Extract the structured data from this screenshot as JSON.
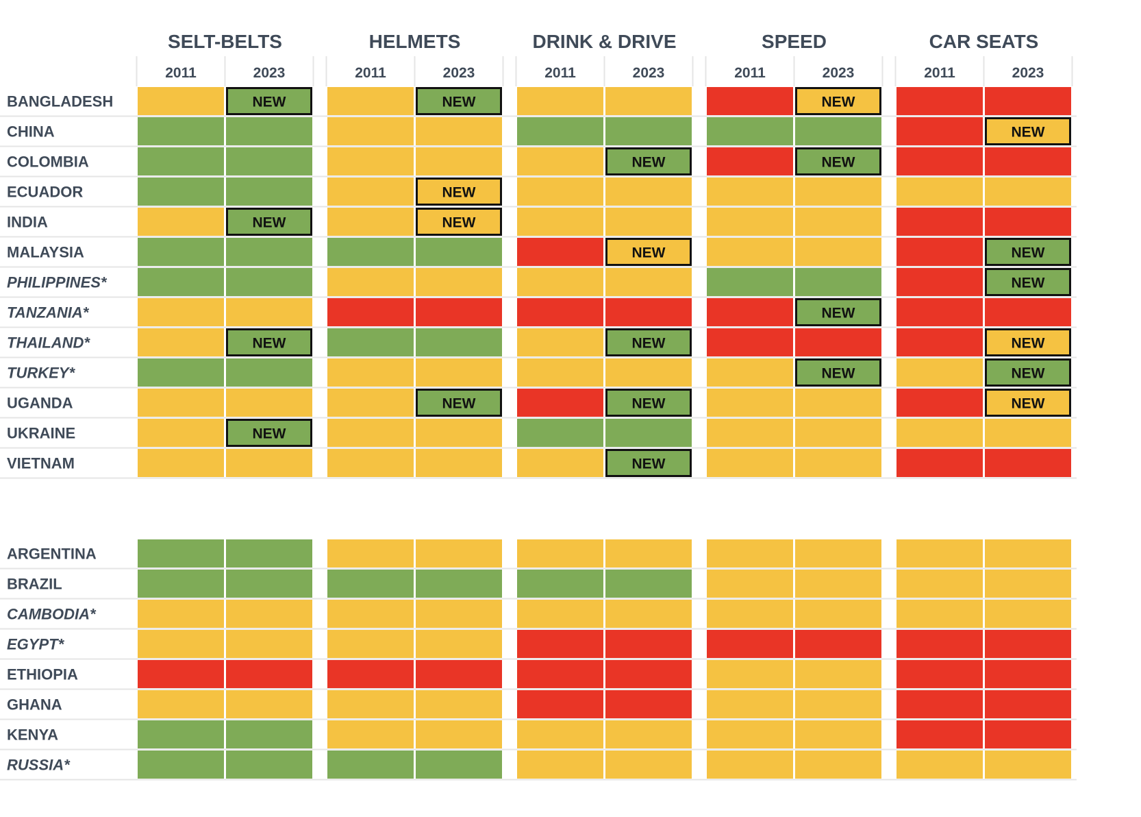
{
  "chart_data": {
    "type": "heatmap",
    "title": "",
    "colors": {
      "green": "#7fab57",
      "yellow": "#f5c242",
      "red": "#e93526",
      "border_new": "#111111",
      "gridline": "#e5e5e5",
      "text": "#3f4a58"
    },
    "categories": [
      "SELT-BELTS",
      "HELMETS",
      "DRINK & DRIVE",
      "SPEED",
      "CAR SEATS"
    ],
    "years": [
      "2011",
      "2023"
    ],
    "new_label": "NEW",
    "groups": [
      {
        "rows": [
          {
            "country": "BANGLADESH",
            "italic": false,
            "cells": [
              "yellow",
              "green",
              "yellow",
              "green",
              "yellow",
              "yellow",
              "red",
              "yellow",
              "red",
              "red"
            ],
            "new": [
              1,
              3,
              7
            ]
          },
          {
            "country": "CHINA",
            "italic": false,
            "cells": [
              "green",
              "green",
              "yellow",
              "yellow",
              "green",
              "green",
              "green",
              "green",
              "red",
              "yellow"
            ],
            "new": [
              9
            ]
          },
          {
            "country": "COLOMBIA",
            "italic": false,
            "cells": [
              "green",
              "green",
              "yellow",
              "yellow",
              "yellow",
              "green",
              "red",
              "green",
              "red",
              "red"
            ],
            "new": [
              5,
              7
            ]
          },
          {
            "country": "ECUADOR",
            "italic": false,
            "cells": [
              "green",
              "green",
              "yellow",
              "yellow",
              "yellow",
              "yellow",
              "yellow",
              "yellow",
              "yellow",
              "yellow"
            ],
            "new": [
              3
            ]
          },
          {
            "country": "INDIA",
            "italic": false,
            "cells": [
              "yellow",
              "green",
              "yellow",
              "yellow",
              "yellow",
              "yellow",
              "yellow",
              "yellow",
              "red",
              "red"
            ],
            "new": [
              1,
              3
            ]
          },
          {
            "country": "MALAYSIA",
            "italic": false,
            "cells": [
              "green",
              "green",
              "green",
              "green",
              "red",
              "yellow",
              "yellow",
              "yellow",
              "red",
              "green"
            ],
            "new": [
              5,
              9
            ]
          },
          {
            "country": "PHILIPPINES*",
            "italic": true,
            "cells": [
              "green",
              "green",
              "yellow",
              "yellow",
              "yellow",
              "yellow",
              "green",
              "green",
              "red",
              "green"
            ],
            "new": [
              9
            ]
          },
          {
            "country": "TANZANIA*",
            "italic": true,
            "cells": [
              "yellow",
              "yellow",
              "red",
              "red",
              "red",
              "red",
              "red",
              "green",
              "red",
              "red"
            ],
            "new": [
              7
            ]
          },
          {
            "country": "THAILAND*",
            "italic": true,
            "cells": [
              "yellow",
              "green",
              "green",
              "green",
              "yellow",
              "green",
              "red",
              "red",
              "red",
              "yellow"
            ],
            "new": [
              1,
              5,
              9
            ]
          },
          {
            "country": "TURKEY*",
            "italic": true,
            "cells": [
              "green",
              "green",
              "yellow",
              "yellow",
              "yellow",
              "yellow",
              "yellow",
              "green",
              "yellow",
              "green"
            ],
            "new": [
              7,
              9
            ]
          },
          {
            "country": "UGANDA",
            "italic": false,
            "cells": [
              "yellow",
              "yellow",
              "yellow",
              "green",
              "red",
              "green",
              "yellow",
              "yellow",
              "red",
              "yellow"
            ],
            "new": [
              3,
              5,
              9
            ]
          },
          {
            "country": "UKRAINE",
            "italic": false,
            "cells": [
              "yellow",
              "green",
              "yellow",
              "yellow",
              "green",
              "green",
              "yellow",
              "yellow",
              "yellow",
              "yellow"
            ],
            "new": [
              1
            ]
          },
          {
            "country": "VIETNAM",
            "italic": false,
            "cells": [
              "yellow",
              "yellow",
              "yellow",
              "yellow",
              "yellow",
              "green",
              "yellow",
              "yellow",
              "red",
              "red"
            ],
            "new": [
              5
            ]
          }
        ]
      },
      {
        "rows": [
          {
            "country": "ARGENTINA",
            "italic": false,
            "cells": [
              "green",
              "green",
              "yellow",
              "yellow",
              "yellow",
              "yellow",
              "yellow",
              "yellow",
              "yellow",
              "yellow"
            ],
            "new": []
          },
          {
            "country": "BRAZIL",
            "italic": false,
            "cells": [
              "green",
              "green",
              "green",
              "green",
              "green",
              "green",
              "yellow",
              "yellow",
              "yellow",
              "yellow"
            ],
            "new": []
          },
          {
            "country": "CAMBODIA*",
            "italic": true,
            "cells": [
              "yellow",
              "yellow",
              "yellow",
              "yellow",
              "yellow",
              "yellow",
              "yellow",
              "yellow",
              "yellow",
              "yellow"
            ],
            "new": []
          },
          {
            "country": "EGYPT*",
            "italic": true,
            "cells": [
              "yellow",
              "yellow",
              "yellow",
              "yellow",
              "red",
              "red",
              "red",
              "red",
              "red",
              "red"
            ],
            "new": []
          },
          {
            "country": "ETHIOPIA",
            "italic": false,
            "cells": [
              "red",
              "red",
              "red",
              "red",
              "red",
              "red",
              "yellow",
              "yellow",
              "red",
              "red"
            ],
            "new": []
          },
          {
            "country": "GHANA",
            "italic": false,
            "cells": [
              "yellow",
              "yellow",
              "yellow",
              "yellow",
              "red",
              "red",
              "yellow",
              "yellow",
              "red",
              "red"
            ],
            "new": []
          },
          {
            "country": "KENYA",
            "italic": false,
            "cells": [
              "green",
              "green",
              "yellow",
              "yellow",
              "yellow",
              "yellow",
              "yellow",
              "yellow",
              "red",
              "red"
            ],
            "new": []
          },
          {
            "country": "RUSSIA*",
            "italic": true,
            "cells": [
              "green",
              "green",
              "green",
              "green",
              "yellow",
              "yellow",
              "yellow",
              "yellow",
              "yellow",
              "yellow"
            ],
            "new": []
          }
        ]
      }
    ]
  }
}
